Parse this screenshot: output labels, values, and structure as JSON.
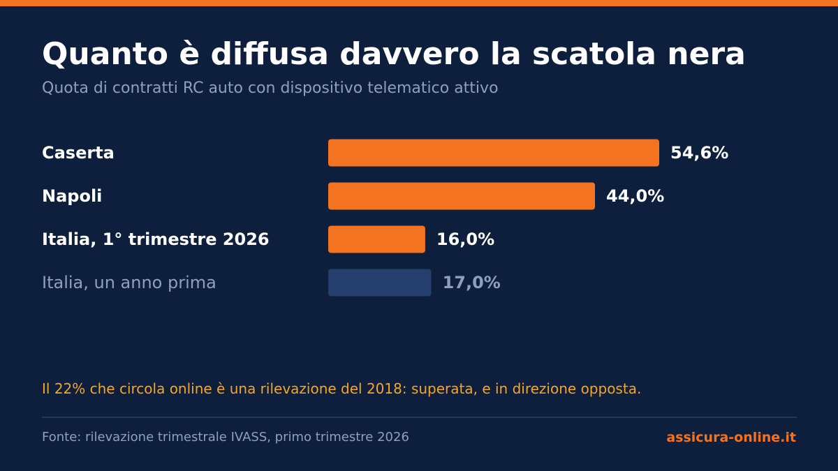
{
  "header": {
    "title": "Quanto è diffusa davvero la scatola nera",
    "subtitle": "Quota di contratti RC auto con dispositivo telematico attivo"
  },
  "chart_data": {
    "type": "bar",
    "orientation": "horizontal",
    "title": "Quanto è diffusa davvero la scatola nera",
    "subtitle": "Quota di contratti RC auto con dispositivo telematico attivo",
    "categories": [
      "Caserta",
      "Napoli",
      "Italia, 1° trimestre 2026",
      "Italia, un anno prima"
    ],
    "values": [
      54.6,
      44.0,
      16.0,
      17.0
    ],
    "value_labels": [
      "54,6%",
      "44,0%",
      "16,0%",
      "17,0%"
    ],
    "unit": "%",
    "highlight": [
      true,
      true,
      true,
      false
    ],
    "xlim": [
      0,
      54.6
    ],
    "grid": false,
    "legend": "none"
  },
  "note": "Il 22% che circola online è una rilevazione del 2018: superata, e in direzione opposta.",
  "footer": {
    "source": "Fonte: rilevazione trimestrale IVASS, primo trimestre 2026",
    "brand": "assicura-online.it"
  },
  "colors": {
    "background": "#0e1f3d",
    "accent": "#f47320",
    "muted_bar": "#243f6b",
    "label": "#ffffff",
    "muted_label": "#8fa0bb",
    "note": "#f5a623"
  }
}
